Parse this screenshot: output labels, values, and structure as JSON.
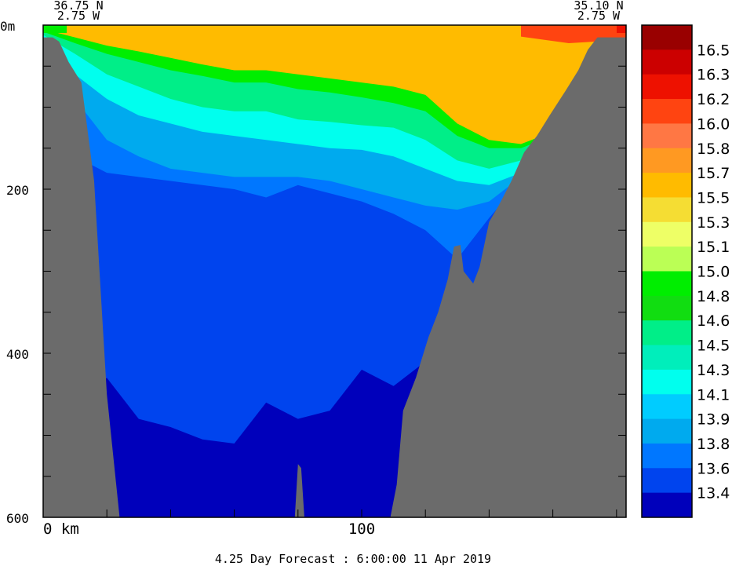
{
  "chart_data": {
    "type": "heatmap",
    "title": "",
    "corner_left": {
      "lat": "36.75 N",
      "lon": "2.75 W"
    },
    "corner_right": {
      "lat": "35.10 N",
      "lon": "2.75 W"
    },
    "footer": "4.25 Day Forecast :  6:00:00  11 Apr 2019",
    "xlabel_unit": "km",
    "ylabel_unit": "m",
    "xlim": [
      0,
      183
    ],
    "ylim": [
      0,
      600
    ],
    "y_ticks": [
      "0m",
      "200",
      "400",
      "600"
    ],
    "y_tick_values": [
      0,
      200,
      400,
      600
    ],
    "x_ticks": [
      "0 km",
      "100"
    ],
    "x_tick_values": [
      0,
      100
    ],
    "colorbar_levels": [
      "16.5",
      "16.3",
      "16.2",
      "16.0",
      "15.8",
      "15.7",
      "15.5",
      "15.3",
      "15.1",
      "15.0",
      "14.8",
      "14.6",
      "14.5",
      "14.3",
      "14.1",
      "13.9",
      "13.8",
      "13.6",
      "13.4"
    ],
    "colorbar_colors": [
      "#990000",
      "#cc0000",
      "#ee1100",
      "#ff4411",
      "#ff7744",
      "#ff9922",
      "#ffbb00",
      "#f5dd33",
      "#eeff66",
      "#bbff55",
      "#00ee00",
      "#11dd11",
      "#00ee88",
      "#00eebb",
      "#00ffee",
      "#00ccff",
      "#00aaee",
      "#0077ff",
      "#0044ee",
      "#0000bb"
    ],
    "land_color": "#6b6b6b",
    "bathymetry_depth_m": [
      [
        0,
        15
      ],
      [
        3,
        15
      ],
      [
        5,
        20
      ],
      [
        8,
        45
      ],
      [
        12,
        70
      ],
      [
        16,
        190
      ],
      [
        20,
        450
      ],
      [
        24,
        600
      ],
      [
        79,
        600
      ],
      [
        80,
        535
      ],
      [
        81,
        540
      ],
      [
        82,
        600
      ],
      [
        109,
        600
      ],
      [
        111,
        560
      ],
      [
        113,
        470
      ],
      [
        117,
        430
      ],
      [
        121,
        380
      ],
      [
        124,
        350
      ],
      [
        127,
        310
      ],
      [
        129,
        270
      ],
      [
        131,
        268
      ],
      [
        132,
        300
      ],
      [
        135,
        315
      ],
      [
        137,
        295
      ],
      [
        140,
        240
      ],
      [
        143,
        220
      ],
      [
        147,
        190
      ],
      [
        151,
        155
      ],
      [
        155,
        135
      ],
      [
        159,
        110
      ],
      [
        164,
        80
      ],
      [
        168,
        55
      ],
      [
        171,
        30
      ],
      [
        174,
        15
      ],
      [
        183,
        15
      ]
    ],
    "isotherm_depths_m": {
      "x": [
        0,
        10,
        20,
        30,
        40,
        50,
        60,
        70,
        80,
        90,
        100,
        110,
        120,
        130,
        140,
        150,
        160,
        170,
        183
      ],
      "14.8": [
        5,
        15,
        25,
        32,
        40,
        48,
        55,
        55,
        60,
        65,
        70,
        75,
        85,
        120,
        140,
        145,
        130,
        100,
        60
      ],
      "14.6": [
        8,
        22,
        35,
        45,
        55,
        62,
        70,
        70,
        78,
        82,
        88,
        95,
        105,
        135,
        150,
        150,
        135,
        105,
        65
      ],
      "14.1": [
        12,
        35,
        60,
        75,
        90,
        100,
        105,
        105,
        115,
        118,
        122,
        125,
        140,
        165,
        175,
        165,
        145,
        110,
        70
      ],
      "13.9": [
        15,
        60,
        90,
        110,
        120,
        130,
        135,
        140,
        145,
        150,
        152,
        160,
        175,
        190,
        195,
        180,
        150,
        115,
        75
      ],
      "13.8": [
        20,
        90,
        140,
        160,
        175,
        180,
        185,
        185,
        185,
        190,
        200,
        210,
        220,
        225,
        215,
        185,
        155,
        120,
        80
      ],
      "13.6": [
        25,
        160,
        180,
        185,
        190,
        195,
        200,
        210,
        195,
        205,
        215,
        230,
        250,
        285,
        235,
        190,
        160,
        125,
        85
      ],
      "13.4": [
        30,
        450,
        430,
        480,
        490,
        505,
        510,
        460,
        480,
        470,
        420,
        440,
        410,
        400,
        300,
        200,
        165,
        130,
        90
      ]
    }
  }
}
